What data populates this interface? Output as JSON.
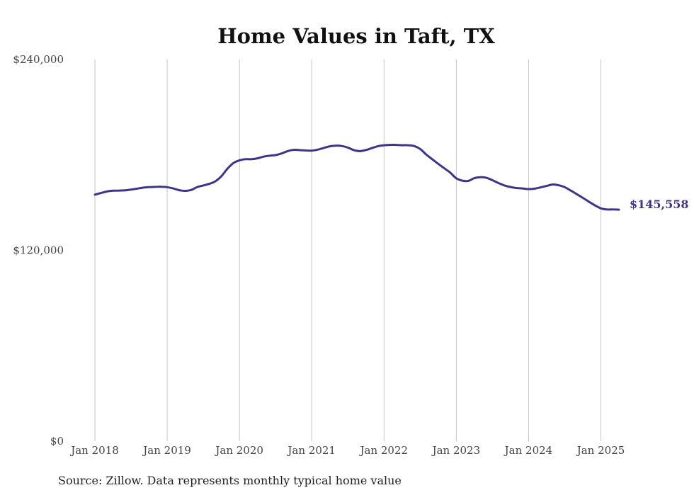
{
  "chart_data": {
    "type": "line",
    "title": "Home Values in Taft, TX",
    "xlabel": "",
    "ylabel": "",
    "ylim": [
      0,
      240000
    ],
    "y_ticks": [
      "$0",
      "$120,000",
      "$240,000"
    ],
    "y_tick_values": [
      0,
      120000,
      240000
    ],
    "x_ticks": [
      "Jan 2018",
      "Jan 2019",
      "Jan 2020",
      "Jan 2021",
      "Jan 2022",
      "Jan 2023",
      "Jan 2024",
      "Jan 2025"
    ],
    "x_tick_values": [
      "2018-01",
      "2019-01",
      "2020-01",
      "2021-01",
      "2022-01",
      "2023-01",
      "2024-01",
      "2025-01"
    ],
    "grid": "vertical",
    "legend": "none",
    "series": [
      {
        "color": "#3d348b",
        "x": [
          "2018-01",
          "2018-02",
          "2018-03",
          "2018-04",
          "2018-05",
          "2018-06",
          "2018-07",
          "2018-08",
          "2018-09",
          "2018-10",
          "2018-11",
          "2018-12",
          "2019-01",
          "2019-02",
          "2019-03",
          "2019-04",
          "2019-05",
          "2019-06",
          "2019-07",
          "2019-08",
          "2019-09",
          "2019-10",
          "2019-11",
          "2019-12",
          "2020-01",
          "2020-02",
          "2020-03",
          "2020-04",
          "2020-05",
          "2020-06",
          "2020-07",
          "2020-08",
          "2020-09",
          "2020-10",
          "2020-11",
          "2020-12",
          "2021-01",
          "2021-02",
          "2021-03",
          "2021-04",
          "2021-05",
          "2021-06",
          "2021-07",
          "2021-08",
          "2021-09",
          "2021-10",
          "2021-11",
          "2021-12",
          "2022-01",
          "2022-02",
          "2022-03",
          "2022-04",
          "2022-05",
          "2022-06",
          "2022-07",
          "2022-08",
          "2022-09",
          "2022-10",
          "2022-11",
          "2022-12",
          "2023-01",
          "2023-02",
          "2023-03",
          "2023-04",
          "2023-05",
          "2023-06",
          "2023-07",
          "2023-08",
          "2023-09",
          "2023-10",
          "2023-11",
          "2023-12",
          "2024-01",
          "2024-02",
          "2024-03",
          "2024-04",
          "2024-05",
          "2024-06",
          "2024-07",
          "2024-08",
          "2024-09",
          "2024-10",
          "2024-11",
          "2024-12",
          "2025-01",
          "2025-02",
          "2025-03",
          "2025-04"
        ],
        "values": [
          155000,
          156000,
          157000,
          157500,
          157600,
          157700,
          158200,
          158800,
          159400,
          159700,
          159900,
          160000,
          159700,
          158900,
          157800,
          157400,
          158000,
          159800,
          160800,
          161800,
          163400,
          166600,
          171300,
          174900,
          176600,
          177300,
          177300,
          177900,
          178900,
          179500,
          179900,
          180900,
          182400,
          183200,
          183000,
          182800,
          182700,
          183300,
          184400,
          185400,
          185800,
          185600,
          184600,
          183000,
          182400,
          183100,
          184300,
          185500,
          186100,
          186300,
          186300,
          186100,
          186100,
          185600,
          183700,
          180300,
          177300,
          174400,
          171600,
          168800,
          165300,
          163800,
          163700,
          165400,
          166000,
          165600,
          164100,
          162300,
          160800,
          159800,
          159200,
          158900,
          158500,
          158800,
          159600,
          160500,
          161400,
          160900,
          159700,
          157600,
          155300,
          153000,
          150600,
          148300,
          146400,
          145700,
          145700,
          145558
        ]
      }
    ],
    "end_label": "$145,558",
    "footnote": "Source: Zillow. Data represents monthly typical home value"
  }
}
